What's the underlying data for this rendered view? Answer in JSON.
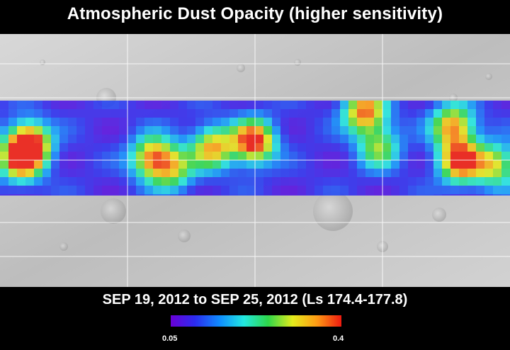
{
  "title": "Atmospheric Dust Opacity (higher sensitivity)",
  "date_range": "SEP 19, 2012 to SEP 25, 2012 (Ls 174.4-177.8)",
  "colorbar": {
    "min_label": "0.05",
    "max_label": "0.4",
    "min_value": 0.05,
    "max_value": 0.4,
    "colors": [
      "#6a00d8",
      "#2b2cf0",
      "#0f8cff",
      "#22e8e0",
      "#2fd84a",
      "#e4ec1c",
      "#ff9a14",
      "#ee1a10"
    ]
  },
  "map": {
    "base_color": "#c9c9c9",
    "grid_color": "#ffffff",
    "dust_band_fill": "#6a3fe0"
  }
}
